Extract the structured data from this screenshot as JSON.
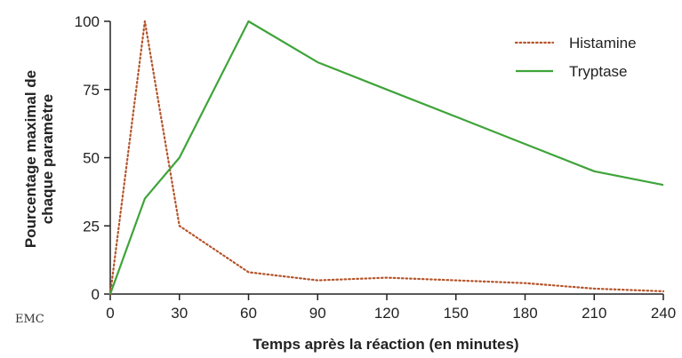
{
  "watermark": "EMC",
  "chart_data": {
    "type": "line",
    "title": "",
    "xlabel": "Temps après la réaction (en minutes)",
    "ylabel_lines": [
      "Pourcentage maximal de",
      "chaque paramètre"
    ],
    "xlim": [
      0,
      240
    ],
    "ylim": [
      0,
      100
    ],
    "xticks": [
      0,
      30,
      60,
      90,
      120,
      150,
      180,
      210,
      240
    ],
    "yticks": [
      0,
      25,
      50,
      75,
      100
    ],
    "grid": false,
    "legend_position": "top-right",
    "series": [
      {
        "name": "Histamine",
        "color": "#b5542a",
        "style": "dotted",
        "points": [
          [
            0,
            0
          ],
          [
            15,
            100
          ],
          [
            30,
            25
          ],
          [
            60,
            8
          ],
          [
            90,
            5
          ],
          [
            120,
            6
          ],
          [
            150,
            5
          ],
          [
            180,
            4
          ],
          [
            210,
            2
          ],
          [
            240,
            1
          ]
        ]
      },
      {
        "name": "Tryptase",
        "color": "#3fa43a",
        "style": "solid",
        "points": [
          [
            0,
            0
          ],
          [
            15,
            35
          ],
          [
            30,
            50
          ],
          [
            60,
            100
          ],
          [
            90,
            85
          ],
          [
            120,
            75
          ],
          [
            150,
            65
          ],
          [
            180,
            55
          ],
          [
            210,
            45
          ],
          [
            240,
            40
          ]
        ]
      }
    ]
  }
}
